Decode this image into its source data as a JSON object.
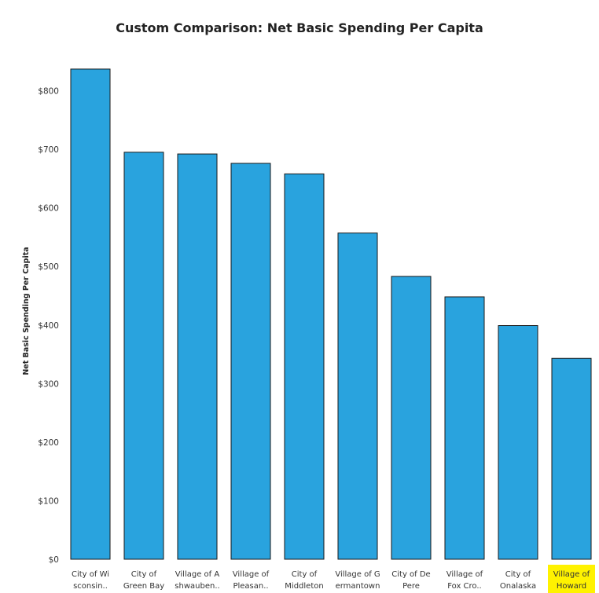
{
  "chart_data": {
    "type": "bar",
    "title": "Custom Comparison: Net Basic Spending Per Capita",
    "ylabel": "Net Basic Spending Per Capita",
    "xlabel": "",
    "ylim": [
      0,
      880
    ],
    "yticks": [
      "$0",
      "$100",
      "$200",
      "$300",
      "$400",
      "$500",
      "$600",
      "$700",
      "$800"
    ],
    "tick_values": [
      0,
      100,
      200,
      300,
      400,
      500,
      600,
      700,
      800
    ],
    "grid": false,
    "bar_color": "#29a3de",
    "highlight_color": "#fff200",
    "categories": [
      [
        "City of Wi",
        "sconsin.."
      ],
      [
        "City of",
        "Green Bay"
      ],
      [
        "Village of A",
        "shwauben.."
      ],
      [
        "Village of",
        "Pleasan.."
      ],
      [
        "City of",
        "Middleton"
      ],
      [
        "Village of G",
        "ermantown"
      ],
      [
        "City of De",
        "Pere"
      ],
      [
        "Village of",
        "Fox Cro.."
      ],
      [
        "City of",
        "Onalaska"
      ],
      [
        "Village of",
        "Howard"
      ]
    ],
    "values": [
      837,
      695,
      692,
      676,
      658,
      557,
      483,
      448,
      399,
      343
    ],
    "highlighted_index": 9
  }
}
